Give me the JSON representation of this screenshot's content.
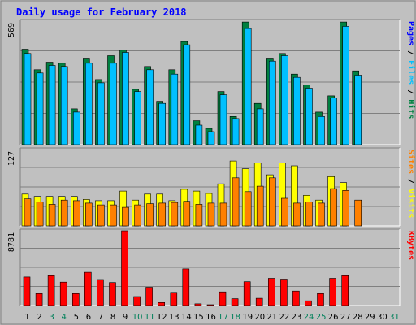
{
  "chart_data": [
    {
      "type": "bar",
      "title": "Daily usage for February 2018",
      "categories": [
        "1",
        "2",
        "3",
        "4",
        "5",
        "6",
        "7",
        "8",
        "9",
        "10",
        "11",
        "12",
        "13",
        "14",
        "15",
        "16",
        "17",
        "18",
        "19",
        "20",
        "21",
        "22",
        "23",
        "24",
        "25",
        "26",
        "27",
        "28",
        "29",
        "30",
        "31"
      ],
      "weekend_days": [
        3,
        4,
        10,
        11,
        17,
        18,
        24,
        25,
        31
      ],
      "ymax_label": "569",
      "ylim": [
        0,
        569
      ],
      "axis_label": [
        "Pages",
        "Files",
        "Hits"
      ],
      "series": [
        {
          "name": "Hits",
          "color": "#008040",
          "values": [
            440,
            345,
            380,
            375,
            165,
            395,
            300,
            410,
            435,
            255,
            360,
            200,
            345,
            475,
            110,
            75,
            245,
            130,
            565,
            190,
            395,
            420,
            325,
            275,
            150,
            225,
            565,
            340,
            0,
            0,
            0
          ]
        },
        {
          "name": "Files",
          "color": "#00c0ff",
          "values": [
            420,
            330,
            365,
            360,
            150,
            375,
            285,
            375,
            425,
            245,
            345,
            190,
            325,
            460,
            90,
            60,
            230,
            120,
            535,
            165,
            385,
            410,
            310,
            260,
            130,
            215,
            545,
            320,
            0,
            0,
            0
          ]
        },
        {
          "name": "Pages",
          "color": "#0000ff",
          "values": [
            0,
            0,
            0,
            0,
            0,
            0,
            0,
            0,
            0,
            0,
            0,
            0,
            0,
            0,
            0,
            0,
            0,
            0,
            0,
            0,
            0,
            0,
            0,
            0,
            0,
            0,
            0,
            0,
            0,
            0,
            0
          ]
        }
      ]
    },
    {
      "type": "bar",
      "ymax_label": "127",
      "ylim": [
        0,
        127
      ],
      "axis_label": [
        "Sites",
        "Visits"
      ],
      "series": [
        {
          "name": "Visits",
          "color": "#ffff00",
          "values": [
            53,
            49,
            49,
            49,
            49,
            44,
            42,
            42,
            58,
            43,
            53,
            53,
            42,
            61,
            58,
            54,
            70,
            108,
            95,
            105,
            85,
            105,
            100,
            51,
            43,
            82,
            72,
            0,
            0,
            0,
            0
          ]
        },
        {
          "name": "Sites",
          "color": "#ff8000",
          "values": [
            45,
            40,
            36,
            43,
            42,
            38,
            35,
            35,
            31,
            35,
            37,
            38,
            39,
            41,
            36,
            38,
            38,
            80,
            57,
            66,
            80,
            46,
            38,
            40,
            38,
            62,
            59,
            43,
            0,
            0,
            0
          ]
        }
      ]
    },
    {
      "type": "bar",
      "ymax_label": "8781",
      "ylim": [
        0,
        8781
      ],
      "axis_label": [
        "KBytes"
      ],
      "series": [
        {
          "name": "KBytes",
          "color": "#ff0000",
          "values": [
            3350,
            1400,
            3500,
            2750,
            1400,
            3900,
            3050,
            2700,
            8781,
            1050,
            2150,
            350,
            1550,
            4300,
            200,
            50,
            1600,
            800,
            2800,
            850,
            3200,
            3100,
            1700,
            550,
            1400,
            3200,
            3500,
            0,
            0,
            0,
            0
          ]
        }
      ]
    }
  ]
}
